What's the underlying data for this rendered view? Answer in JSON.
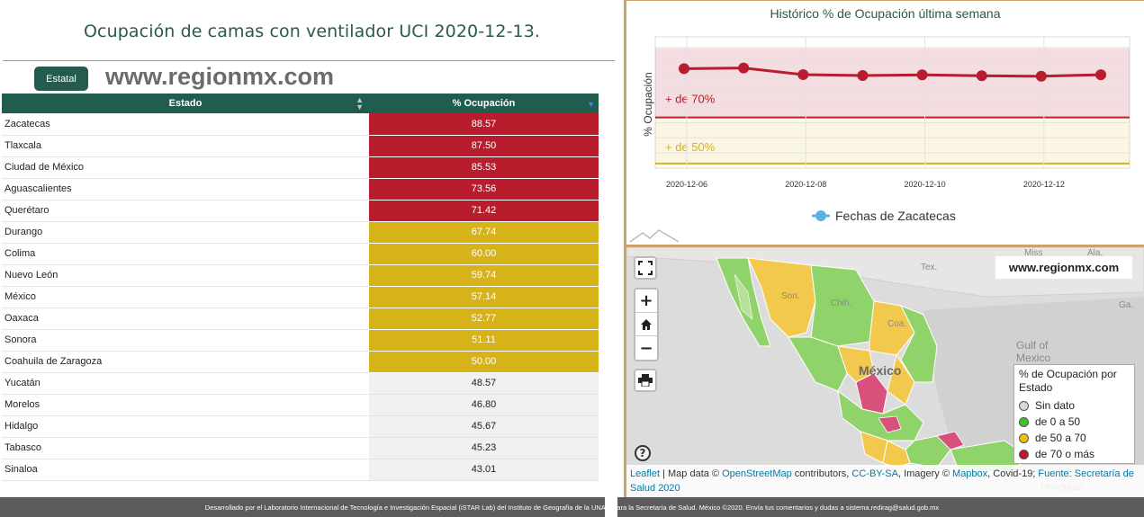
{
  "page": {
    "title": "Ocupación de camas con ventilador UCI 2020-12-13.",
    "tab_label": "Estatal",
    "watermark": "www.regionmx.com"
  },
  "table": {
    "headers": {
      "estado": "Estado",
      "ocupacion": "% Ocupación"
    },
    "rows": [
      {
        "estado": "Zacatecas",
        "value": "88.57",
        "level": "red"
      },
      {
        "estado": "Tlaxcala",
        "value": "87.50",
        "level": "red"
      },
      {
        "estado": "Ciudad de México",
        "value": "85.53",
        "level": "red"
      },
      {
        "estado": "Aguascalientes",
        "value": "73.56",
        "level": "red"
      },
      {
        "estado": "Querétaro",
        "value": "71.42",
        "level": "red"
      },
      {
        "estado": "Durango",
        "value": "67.74",
        "level": "yellow"
      },
      {
        "estado": "Colima",
        "value": "60.00",
        "level": "yellow"
      },
      {
        "estado": "Nuevo León",
        "value": "59.74",
        "level": "yellow"
      },
      {
        "estado": "México",
        "value": "57.14",
        "level": "yellow"
      },
      {
        "estado": "Oaxaca",
        "value": "52.77",
        "level": "yellow"
      },
      {
        "estado": "Sonora",
        "value": "51.11",
        "level": "yellow"
      },
      {
        "estado": "Coahuila de Zaragoza",
        "value": "50.00",
        "level": "yellow"
      },
      {
        "estado": "Yucatán",
        "value": "48.57",
        "level": "green"
      },
      {
        "estado": "Morelos",
        "value": "46.80",
        "level": "green"
      },
      {
        "estado": "Hidalgo",
        "value": "45.67",
        "level": "green"
      },
      {
        "estado": "Tabasco",
        "value": "45.23",
        "level": "green"
      },
      {
        "estado": "Sinaloa",
        "value": "43.01",
        "level": "green"
      }
    ]
  },
  "chart_data": {
    "type": "line",
    "title": "Histórico % de Ocupación última semana",
    "ylabel": "% Ocupación",
    "xlabel": "",
    "x": [
      "2020-12-06",
      "2020-12-07",
      "2020-12-08",
      "2020-12-09",
      "2020-12-10",
      "2020-12-11",
      "2020-12-12",
      "2020-12-13"
    ],
    "x_tick_labels": [
      "2020-12-06",
      "2020-12-08",
      "2020-12-10",
      "2020-12-12"
    ],
    "series": [
      {
        "name": "Fechas de Zacatecas",
        "values": [
          91.2,
          91.5,
          88.6,
          88.2,
          88.5,
          88.1,
          87.9,
          88.57
        ]
      }
    ],
    "ylim": [
      0,
      100
    ],
    "grid": true,
    "legend": "bottom",
    "bands": [
      {
        "label": "+ de 70%",
        "from": 70,
        "to": 100,
        "color": "#b81c2d"
      },
      {
        "label": "+ de 50%",
        "from": 50,
        "to": 70,
        "color": "#d6b419"
      }
    ],
    "line_color": "#b81c2d",
    "legend_marker_color": "#5bb2e0"
  },
  "map": {
    "watermark": "www.regionmx.com",
    "labels": [
      "Son.",
      "Chih.",
      "Coa.",
      "Tex.",
      "Miss",
      "Ala.",
      "Ga.",
      "Gulf of Mexico",
      "México",
      "Honduras"
    ],
    "legend": {
      "title": "% de Ocupación por Estado",
      "items": [
        {
          "label": "Sin dato",
          "color": "#d9d9d9"
        },
        {
          "label": "de 0 a 50",
          "color": "#3fbf2a"
        },
        {
          "label": "de 50 a 70",
          "color": "#f2c000"
        },
        {
          "label": "de 70 o más",
          "color": "#c01530"
        }
      ]
    },
    "attribution": {
      "leaflet": "Leaflet",
      "sep1": " | Map data © ",
      "osm": "OpenStreetMap",
      "sep2": " contributors, ",
      "license": "CC-BY-SA",
      "sep3": ", Imagery © ",
      "mapbox": "Mapbox",
      "sep4": ", Covid-19; ",
      "source": "Fuente: Secretaría de Salud 2020"
    }
  },
  "footer": {
    "text": "Desarrollado por el Laboratorio Internacional de Tecnología e Investigación Espacial (iSTAR Lab) del Instituto de Geografía de la UNAM para la Secretaría de Salud. México ©2020. Envía tus comentarios y dudas a sistema.redirag@salud.gob.mx"
  }
}
